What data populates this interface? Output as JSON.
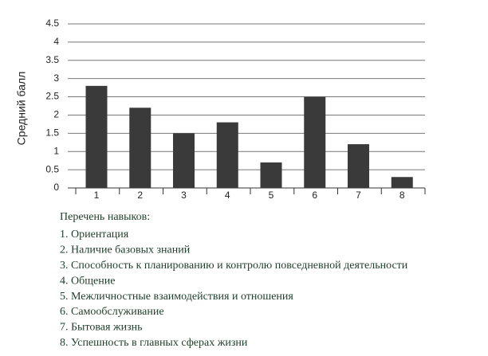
{
  "chart_data": {
    "type": "bar",
    "y_label": "Средний балл",
    "categories": [
      "1",
      "2",
      "3",
      "4",
      "5",
      "6",
      "7",
      "8"
    ],
    "values": [
      2.8,
      2.2,
      1.5,
      1.8,
      0.7,
      2.5,
      1.2,
      0.3
    ],
    "color": "#3a3a3a",
    "ylim": [
      0,
      4.5
    ],
    "yticks": [
      0,
      0.5,
      1,
      1.5,
      2,
      2.5,
      3,
      3.5,
      4,
      4.5
    ],
    "grid": true,
    "notes_title": "Перечень навыков:",
    "notes": [
      "1. Ориентация",
      "2. Наличие базовых знаний",
      "3. Способность к планированию и контролю повседневной деятельности",
      "4. Общение",
      "5. Межличностные взаимодействия и отношения",
      "6. Самообслуживание",
      "7. Бытовая жизнь",
      "8. Успешность в главных сферах жизни"
    ]
  }
}
